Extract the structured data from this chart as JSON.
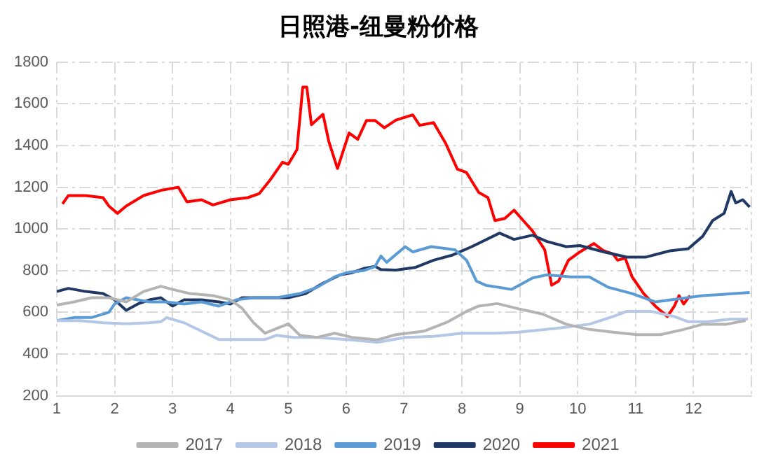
{
  "chart_data": {
    "type": "line",
    "title": "日照港-纽曼粉价格",
    "xlim": [
      1,
      13
    ],
    "xticks": [
      1,
      2,
      3,
      4,
      5,
      6,
      7,
      8,
      9,
      10,
      11,
      12,
      {
        "value": 13,
        "label": null
      }
    ],
    "ylim": [
      200,
      1800
    ],
    "yticks": [
      200,
      400,
      600,
      800,
      1000,
      1200,
      1400,
      1600,
      1800
    ],
    "grid": true,
    "legend": "bottom",
    "marker": "none",
    "line_style": "solid",
    "series": [
      {
        "name": "2017",
        "color": "#b4b4b4",
        "x": [
          1.0,
          1.3,
          1.6,
          1.9,
          2.2,
          2.5,
          2.8,
          3.0,
          3.3,
          3.7,
          4.0,
          4.2,
          4.4,
          4.6,
          5.0,
          5.2,
          5.5,
          5.8,
          6.1,
          6.54,
          6.86,
          7.35,
          7.76,
          8.08,
          8.29,
          8.61,
          8.98,
          9.39,
          9.8,
          10.2,
          10.61,
          11.02,
          11.43,
          11.83,
          12.16,
          12.57,
          12.9
        ],
        "values": [
          635,
          650,
          670,
          670,
          650,
          700,
          725,
          710,
          690,
          680,
          660,
          620,
          550,
          500,
          545,
          490,
          480,
          500,
          480,
          468,
          493,
          510,
          555,
          605,
          630,
          642,
          617,
          592,
          543,
          518,
          505,
          493,
          493,
          518,
          543,
          543,
          560
        ]
      },
      {
        "name": "2018",
        "color": "#b4c7e7",
        "x": [
          1.0,
          1.4,
          1.8,
          2.2,
          2.6,
          2.8,
          2.9,
          3.2,
          3.5,
          3.8,
          4.2,
          4.6,
          4.8,
          5.1,
          5.5,
          6.0,
          6.4,
          6.54,
          7.02,
          7.51,
          8.0,
          8.57,
          8.98,
          9.63,
          10.2,
          10.61,
          10.85,
          11.26,
          11.67,
          11.91,
          12.24,
          12.65,
          12.94
        ],
        "values": [
          560,
          560,
          550,
          545,
          550,
          555,
          575,
          550,
          510,
          470,
          470,
          470,
          490,
          480,
          480,
          470,
          460,
          456,
          480,
          485,
          500,
          500,
          505,
          523,
          543,
          580,
          605,
          605,
          580,
          555,
          555,
          568,
          568
        ]
      },
      {
        "name": "2019",
        "color": "#5b9bd5",
        "x": [
          1.0,
          1.3,
          1.6,
          1.9,
          2.0,
          2.2,
          2.4,
          2.6,
          2.9,
          3.2,
          3.5,
          3.8,
          4.1,
          4.4,
          4.8,
          5.2,
          5.5,
          5.8,
          6.0,
          6.3,
          6.5,
          6.6,
          6.7,
          7.02,
          7.15,
          7.47,
          7.88,
          8.08,
          8.25,
          8.41,
          8.86,
          9.22,
          9.47,
          9.88,
          10.2,
          10.53,
          10.94,
          11.34,
          11.75,
          12.16,
          12.97
        ],
        "values": [
          560,
          575,
          575,
          600,
          640,
          670,
          660,
          650,
          650,
          640,
          650,
          630,
          660,
          670,
          670,
          690,
          720,
          770,
          790,
          800,
          820,
          870,
          840,
          915,
          890,
          915,
          900,
          850,
          750,
          730,
          710,
          765,
          780,
          770,
          770,
          720,
          690,
          650,
          665,
          680,
          695
        ]
      },
      {
        "name": "2020",
        "color": "#203864",
        "x": [
          1.0,
          1.2,
          1.5,
          1.8,
          2.0,
          2.2,
          2.4,
          2.6,
          2.8,
          3.0,
          3.2,
          3.5,
          3.8,
          4.0,
          4.2,
          4.5,
          4.8,
          5.0,
          5.3,
          5.6,
          5.9,
          6.1,
          6.3,
          6.5,
          6.6,
          6.86,
          7.19,
          7.51,
          7.84,
          8.17,
          8.65,
          8.9,
          9.22,
          9.47,
          9.8,
          10.04,
          10.45,
          10.85,
          11.18,
          11.59,
          11.91,
          12.16,
          12.33,
          12.53,
          12.65,
          12.73,
          12.85,
          12.97
        ],
        "values": [
          700,
          715,
          700,
          690,
          660,
          610,
          640,
          660,
          670,
          630,
          660,
          660,
          650,
          640,
          670,
          670,
          670,
          670,
          690,
          740,
          780,
          790,
          810,
          820,
          805,
          803,
          815,
          850,
          875,
          915,
          980,
          950,
          970,
          940,
          915,
          920,
          890,
          865,
          865,
          895,
          905,
          965,
          1040,
          1075,
          1180,
          1125,
          1140,
          1105
        ]
      },
      {
        "name": "2021",
        "color": "#ff0000",
        "x": [
          1.1,
          1.2,
          1.5,
          1.8,
          1.9,
          2.05,
          2.2,
          2.5,
          2.8,
          3.1,
          3.25,
          3.5,
          3.7,
          4.0,
          4.3,
          4.5,
          4.7,
          4.9,
          5.0,
          5.15,
          5.25,
          5.32,
          5.4,
          5.6,
          5.7,
          5.85,
          6.05,
          6.2,
          6.35,
          6.5,
          6.66,
          6.86,
          7.15,
          7.27,
          7.51,
          7.72,
          7.92,
          8.08,
          8.29,
          8.45,
          8.57,
          8.74,
          8.9,
          9.06,
          9.22,
          9.43,
          9.55,
          9.67,
          9.84,
          10.04,
          10.28,
          10.45,
          10.61,
          10.69,
          10.82,
          10.94,
          11.14,
          11.34,
          11.55,
          11.67,
          11.75,
          11.83,
          11.94
        ],
        "values": [
          1120,
          1160,
          1160,
          1150,
          1110,
          1075,
          1110,
          1160,
          1185,
          1200,
          1130,
          1140,
          1115,
          1140,
          1150,
          1170,
          1240,
          1320,
          1310,
          1380,
          1680,
          1680,
          1500,
          1550,
          1420,
          1290,
          1460,
          1430,
          1520,
          1520,
          1485,
          1522,
          1547,
          1497,
          1510,
          1410,
          1287,
          1270,
          1175,
          1150,
          1040,
          1050,
          1090,
          1040,
          990,
          900,
          730,
          750,
          850,
          890,
          930,
          895,
          880,
          850,
          860,
          770,
          690,
          630,
          580,
          630,
          680,
          640,
          680
        ]
      }
    ]
  }
}
